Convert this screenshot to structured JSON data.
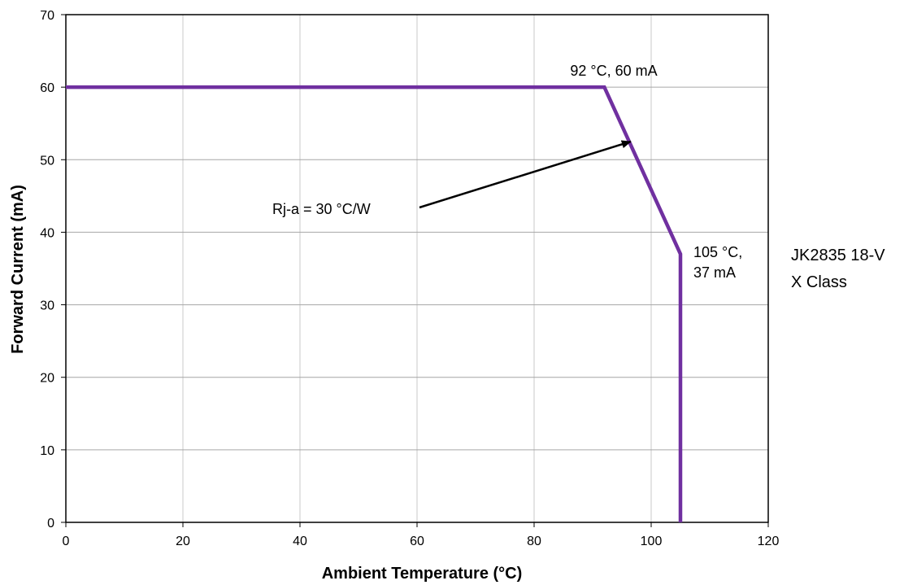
{
  "chart_data": {
    "type": "line",
    "title": "",
    "xlabel": "Ambient Temperature (°C)",
    "ylabel": "Forward Current (mA)",
    "xlim": [
      0,
      120
    ],
    "ylim": [
      0,
      70
    ],
    "xticks": [
      0,
      20,
      40,
      60,
      80,
      100,
      120
    ],
    "yticks": [
      0,
      10,
      20,
      30,
      40,
      50,
      60,
      70
    ],
    "grid": true,
    "legend_position": "right",
    "series": [
      {
        "name": "JK2835 18-V X Class",
        "name_lines": [
          "JK2835 18-V",
          "X Class"
        ],
        "color": "#7030A0",
        "x": [
          0,
          92,
          105,
          105
        ],
        "y": [
          60,
          60,
          37,
          0
        ]
      }
    ],
    "annotations": [
      {
        "id": "knee",
        "lines": [
          "92 °C, 60 mA"
        ],
        "x": 92,
        "y": 60
      },
      {
        "id": "end",
        "lines": [
          "105 °C,",
          "37 mA"
        ],
        "x": 105,
        "y": 37
      },
      {
        "id": "slope",
        "lines": [
          "Rj-a = 30 °C/W"
        ],
        "arrow_to": [
          96.5,
          52.5
        ]
      }
    ]
  }
}
